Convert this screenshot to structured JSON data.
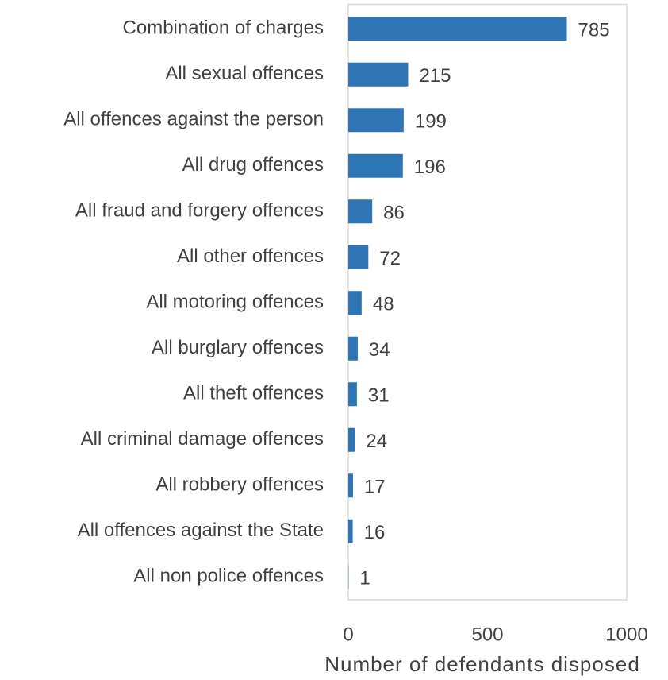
{
  "chart_data": {
    "type": "bar",
    "orientation": "horizontal",
    "x_axis_label": "Number of defendants disposed",
    "categories": [
      "Combination of charges",
      "All sexual offences",
      "All offences against the person",
      "All drug offences",
      "All fraud and forgery offences",
      "All other offences",
      "All motoring offences",
      "All burglary offences",
      "All theft offences",
      "All criminal damage offences",
      "All robbery offences",
      "All offences against the State",
      "All non police offences"
    ],
    "values": [
      785,
      215,
      199,
      196,
      86,
      72,
      48,
      34,
      31,
      24,
      17,
      16,
      1
    ],
    "color": "#2e75b6",
    "xlim": [
      0,
      1000
    ],
    "xticks": [
      0,
      500,
      1000
    ],
    "grid": false
  }
}
